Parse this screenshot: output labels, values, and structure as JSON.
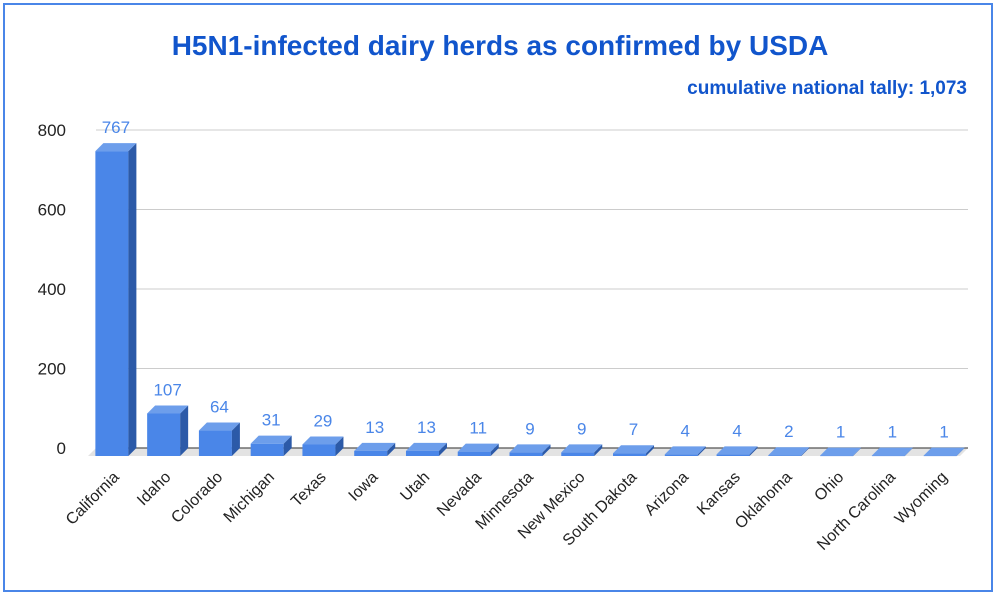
{
  "chart_data": {
    "type": "bar",
    "title": "H5N1-infected dairy herds as confirmed by USDA",
    "subtitle": "cumulative national tally: 1,073",
    "xlabel": "",
    "ylabel": "",
    "categories": [
      "California",
      "Idaho",
      "Colorado",
      "Michigan",
      "Texas",
      "Iowa",
      "Utah",
      "Nevada",
      "Minnesota",
      "New Mexico",
      "South Dakota",
      "Arizona",
      "Kansas",
      "Oklahoma",
      "Ohio",
      "North Carolina",
      "Wyoming"
    ],
    "values": [
      767,
      107,
      64,
      31,
      29,
      13,
      13,
      11,
      9,
      9,
      7,
      4,
      4,
      2,
      1,
      1,
      1
    ],
    "data_labels": [
      "767",
      "107",
      "64",
      "31",
      "29",
      "13",
      "13",
      "11",
      "9",
      "9",
      "7",
      "4",
      "4",
      "2",
      "1",
      "1",
      "1"
    ],
    "ylim": [
      0,
      800
    ],
    "yticks": [
      0,
      200,
      400,
      600,
      800
    ],
    "ytick_labels": [
      "0",
      "200",
      "400",
      "600",
      "800"
    ],
    "grid": true,
    "legend": "none",
    "colors": {
      "bar_front": "#4a86e8",
      "bar_side": "#2c5aa8",
      "bar_top": "#6d9eeb",
      "title": "#1155cc",
      "data_label": "#4a86e8",
      "grid": "#cccccc",
      "floor": "#e3e3e3",
      "frame": "#4a86e8"
    }
  }
}
